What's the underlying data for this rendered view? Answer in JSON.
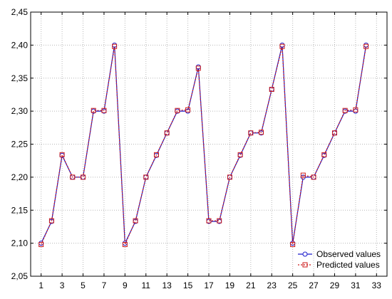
{
  "chart_data": {
    "type": "line",
    "title": "",
    "xlabel": "",
    "ylabel": "",
    "x": [
      1,
      2,
      3,
      4,
      5,
      6,
      7,
      8,
      9,
      10,
      11,
      12,
      13,
      14,
      15,
      16,
      17,
      18,
      19,
      20,
      21,
      22,
      23,
      24,
      25,
      26,
      27,
      28,
      29,
      30,
      31,
      32
    ],
    "x_ticks": [
      1,
      3,
      5,
      7,
      9,
      11,
      13,
      15,
      17,
      19,
      21,
      23,
      25,
      27,
      29,
      31,
      33
    ],
    "xlim": [
      0,
      34
    ],
    "ylim": [
      2.05,
      2.45
    ],
    "y_ticks": [
      2.05,
      2.1,
      2.15,
      2.2,
      2.25,
      2.3,
      2.35,
      2.4,
      2.45
    ],
    "y_tick_labels": [
      "2,05",
      "2,10",
      "2,15",
      "2,20",
      "2,25",
      "2,30",
      "2,35",
      "2,40",
      "2,45"
    ],
    "grid": true,
    "legend_position": "bottom-right",
    "series": [
      {
        "name": "Observed values",
        "color": "#1a1acc",
        "marker": "circle",
        "line_style": "solid",
        "values": [
          2.1,
          2.133,
          2.233,
          2.2,
          2.2,
          2.3,
          2.3,
          2.4,
          2.1,
          2.133,
          2.2,
          2.233,
          2.267,
          2.3,
          2.3,
          2.367,
          2.133,
          2.133,
          2.2,
          2.233,
          2.267,
          2.267,
          2.333,
          2.4,
          2.1,
          2.2,
          2.2,
          2.233,
          2.267,
          2.3,
          2.3,
          2.4
        ]
      },
      {
        "name": "Predicted values",
        "color": "#cc1a1a",
        "marker": "square",
        "line_style": "dotted",
        "values": [
          2.098,
          2.134,
          2.234,
          2.2,
          2.2,
          2.301,
          2.301,
          2.398,
          2.098,
          2.134,
          2.2,
          2.234,
          2.267,
          2.301,
          2.302,
          2.365,
          2.134,
          2.134,
          2.2,
          2.234,
          2.267,
          2.268,
          2.333,
          2.398,
          2.098,
          2.203,
          2.2,
          2.234,
          2.267,
          2.301,
          2.302,
          2.398
        ]
      }
    ]
  },
  "colors": {
    "background": "#ffffff",
    "axis": "#000000",
    "grid": "#b8b8b8"
  }
}
